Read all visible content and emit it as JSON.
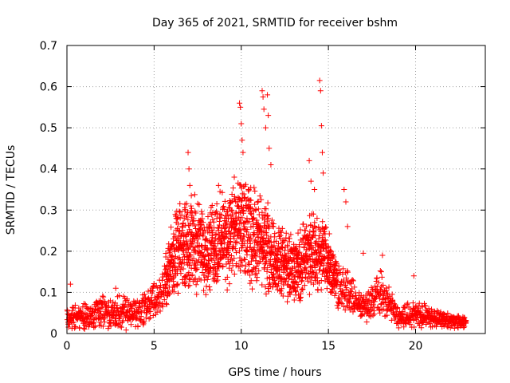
{
  "chart_data": {
    "type": "scatter",
    "title": "Day 365 of 2021, SRMTID for receiver bshm",
    "xlabel": "GPS time / hours",
    "ylabel": "SRMTID / TECUs",
    "xlim": [
      0,
      24
    ],
    "ylim": [
      0,
      0.7
    ],
    "xticks": [
      0,
      5,
      10,
      15,
      20
    ],
    "yticks": [
      0,
      0.1,
      0.2,
      0.3,
      0.4,
      0.5,
      0.6,
      0.7
    ],
    "xtick_labels": [
      "0",
      "5",
      "10",
      "15",
      "20"
    ],
    "ytick_labels": [
      "0",
      "0.1",
      "0.2",
      "0.3",
      "0.4",
      "0.5",
      "0.6",
      "0.7"
    ],
    "grid": true,
    "marker": "+",
    "series": [
      {
        "name": "SRMTID",
        "color": "#ff0000",
        "x_range": [
          0,
          22.9
        ],
        "envelope": [
          {
            "x": 0.0,
            "mean": 0.04,
            "spread": 0.03
          },
          {
            "x": 1.0,
            "mean": 0.04,
            "spread": 0.03
          },
          {
            "x": 2.0,
            "mean": 0.05,
            "spread": 0.035
          },
          {
            "x": 3.0,
            "mean": 0.05,
            "spread": 0.035
          },
          {
            "x": 4.0,
            "mean": 0.05,
            "spread": 0.035
          },
          {
            "x": 5.0,
            "mean": 0.08,
            "spread": 0.045
          },
          {
            "x": 5.5,
            "mean": 0.1,
            "spread": 0.045
          },
          {
            "x": 6.0,
            "mean": 0.18,
            "spread": 0.08
          },
          {
            "x": 7.0,
            "mean": 0.23,
            "spread": 0.1
          },
          {
            "x": 8.0,
            "mean": 0.2,
            "spread": 0.09
          },
          {
            "x": 9.0,
            "mean": 0.23,
            "spread": 0.1
          },
          {
            "x": 10.0,
            "mean": 0.25,
            "spread": 0.11
          },
          {
            "x": 11.0,
            "mean": 0.23,
            "spread": 0.1
          },
          {
            "x": 12.0,
            "mean": 0.18,
            "spread": 0.08
          },
          {
            "x": 13.0,
            "mean": 0.15,
            "spread": 0.07
          },
          {
            "x": 14.0,
            "mean": 0.2,
            "spread": 0.09
          },
          {
            "x": 15.0,
            "mean": 0.18,
            "spread": 0.07
          },
          {
            "x": 15.5,
            "mean": 0.12,
            "spread": 0.05
          },
          {
            "x": 16.0,
            "mean": 0.1,
            "spread": 0.05
          },
          {
            "x": 17.0,
            "mean": 0.06,
            "spread": 0.03
          },
          {
            "x": 18.0,
            "mean": 0.1,
            "spread": 0.05
          },
          {
            "x": 19.0,
            "mean": 0.04,
            "spread": 0.025
          },
          {
            "x": 20.0,
            "mean": 0.05,
            "spread": 0.03
          },
          {
            "x": 21.0,
            "mean": 0.04,
            "spread": 0.02
          },
          {
            "x": 22.0,
            "mean": 0.03,
            "spread": 0.015
          },
          {
            "x": 22.9,
            "mean": 0.03,
            "spread": 0.015
          }
        ],
        "spikes": [
          {
            "x": 0.2,
            "y": 0.12
          },
          {
            "x": 2.8,
            "y": 0.11
          },
          {
            "x": 6.95,
            "y": 0.44
          },
          {
            "x": 7.0,
            "y": 0.4
          },
          {
            "x": 7.05,
            "y": 0.36
          },
          {
            "x": 8.5,
            "y": 0.29
          },
          {
            "x": 8.7,
            "y": 0.36
          },
          {
            "x": 9.6,
            "y": 0.38
          },
          {
            "x": 9.9,
            "y": 0.56
          },
          {
            "x": 9.95,
            "y": 0.55
          },
          {
            "x": 10.0,
            "y": 0.51
          },
          {
            "x": 10.05,
            "y": 0.47
          },
          {
            "x": 10.1,
            "y": 0.44
          },
          {
            "x": 11.2,
            "y": 0.59
          },
          {
            "x": 11.25,
            "y": 0.575
          },
          {
            "x": 11.3,
            "y": 0.545
          },
          {
            "x": 11.4,
            "y": 0.5
          },
          {
            "x": 11.5,
            "y": 0.58
          },
          {
            "x": 11.55,
            "y": 0.53
          },
          {
            "x": 11.6,
            "y": 0.45
          },
          {
            "x": 11.7,
            "y": 0.41
          },
          {
            "x": 13.9,
            "y": 0.42
          },
          {
            "x": 14.0,
            "y": 0.37
          },
          {
            "x": 14.2,
            "y": 0.35
          },
          {
            "x": 14.5,
            "y": 0.615
          },
          {
            "x": 14.55,
            "y": 0.59
          },
          {
            "x": 14.6,
            "y": 0.505
          },
          {
            "x": 14.65,
            "y": 0.44
          },
          {
            "x": 14.7,
            "y": 0.39
          },
          {
            "x": 15.9,
            "y": 0.35
          },
          {
            "x": 16.0,
            "y": 0.32
          },
          {
            "x": 16.1,
            "y": 0.26
          },
          {
            "x": 17.0,
            "y": 0.195
          },
          {
            "x": 18.1,
            "y": 0.19
          },
          {
            "x": 19.9,
            "y": 0.14
          }
        ]
      }
    ]
  }
}
